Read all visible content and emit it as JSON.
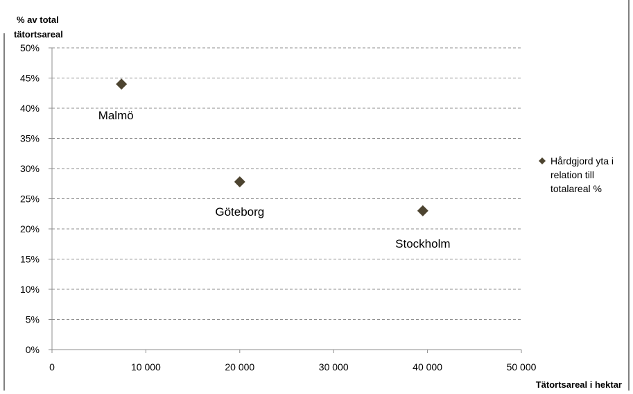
{
  "chart_data": {
    "type": "scatter",
    "ylabel_lines": [
      "% av total",
      "tätortsareal"
    ],
    "xlabel": "Tätortsareal  i hektar",
    "xlim": [
      0,
      50000
    ],
    "ylim": [
      0,
      50
    ],
    "x_ticks": [
      0,
      10000,
      20000,
      30000,
      40000,
      50000
    ],
    "x_tick_labels": [
      "0",
      "10 000",
      "20 000",
      "30 000",
      "40 000",
      "50 000"
    ],
    "y_ticks": [
      0,
      5,
      10,
      15,
      20,
      25,
      30,
      35,
      40,
      45,
      50
    ],
    "y_tick_labels": [
      "0%",
      "5%",
      "10%",
      "15%",
      "20%",
      "25%",
      "30%",
      "35%",
      "40%",
      "45%",
      "50%"
    ],
    "grid": true,
    "legend_position": "right",
    "series": [
      {
        "name": "Hårdgjord yta i relation till totalareal %",
        "legend_lines": [
          "Hårdgjord yta i",
          "relation till",
          "totalareal %"
        ],
        "color": "#4d4430",
        "marker": "diamond",
        "points": [
          {
            "x": 7400,
            "y": 44,
            "label": "Malmö"
          },
          {
            "x": 20000,
            "y": 27.8,
            "label": "Göteborg"
          },
          {
            "x": 39500,
            "y": 23,
            "label": "Stockholm"
          }
        ]
      }
    ]
  }
}
